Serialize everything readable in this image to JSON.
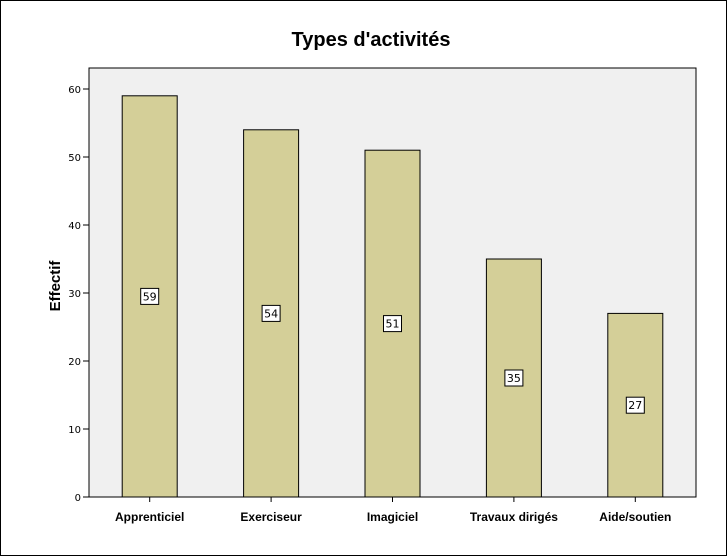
{
  "chart_data": {
    "type": "bar",
    "title": "Types d'activités",
    "xlabel": "",
    "ylabel": "Effectif",
    "categories": [
      "Apprenticiel",
      "Exerciseur",
      "Imagiciel",
      "Travaux dirigés",
      "Aide/soutien"
    ],
    "values": [
      59,
      54,
      51,
      35,
      27
    ],
    "data_labels": [
      "59",
      "54",
      "51",
      "35",
      "27"
    ],
    "ylim": [
      0,
      60
    ],
    "yticks": [
      0,
      10,
      20,
      30,
      40,
      50,
      60
    ],
    "ytick_labels": [
      "0",
      "10",
      "20",
      "30",
      "40",
      "50",
      "60"
    ],
    "grid": false,
    "legend": "none",
    "colors": {
      "bar_fill": "#d4cf98",
      "bar_stroke": "#000000",
      "plot_background": "#f0f0f0",
      "label_box": "#ffffff"
    }
  }
}
